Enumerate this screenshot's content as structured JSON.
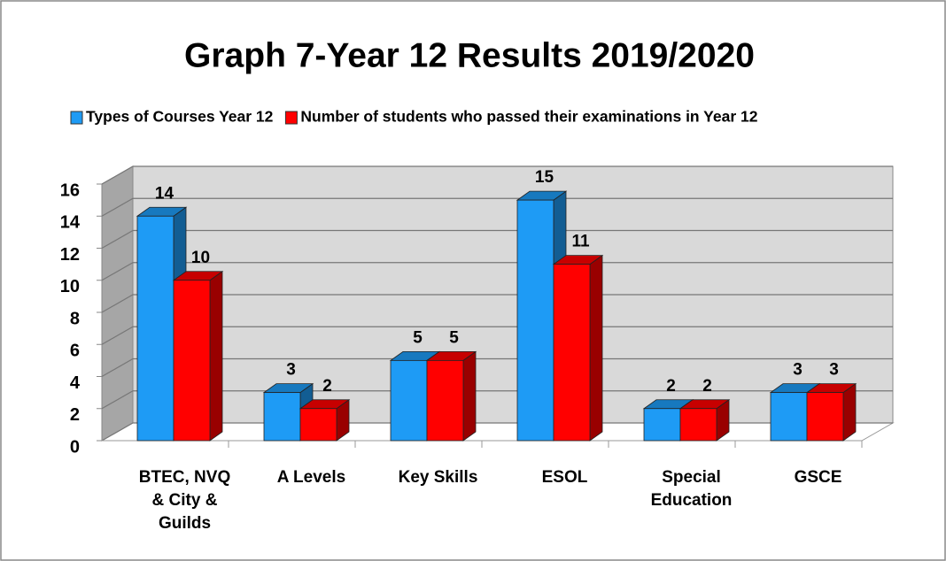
{
  "chart_data": {
    "type": "bar3d",
    "title": "Graph 7-Year 12 Results 2019/2020",
    "categories": [
      "BTEC, NVQ & City & Guilds",
      "A Levels",
      "Key Skills",
      "ESOL",
      "Special Education",
      "GSCE"
    ],
    "series": [
      {
        "name": "Types of Courses Year 12",
        "color": "#1e9bf5",
        "values": [
          14,
          3,
          5,
          15,
          2,
          3
        ]
      },
      {
        "name": "Number of students who passed their examinations in Year 12",
        "color": "#ff0000",
        "values": [
          10,
          2,
          5,
          11,
          2,
          3
        ]
      }
    ],
    "ylim": [
      0,
      16
    ],
    "yticks": [
      0,
      2,
      4,
      6,
      8,
      10,
      12,
      14,
      16
    ],
    "grid": true
  }
}
